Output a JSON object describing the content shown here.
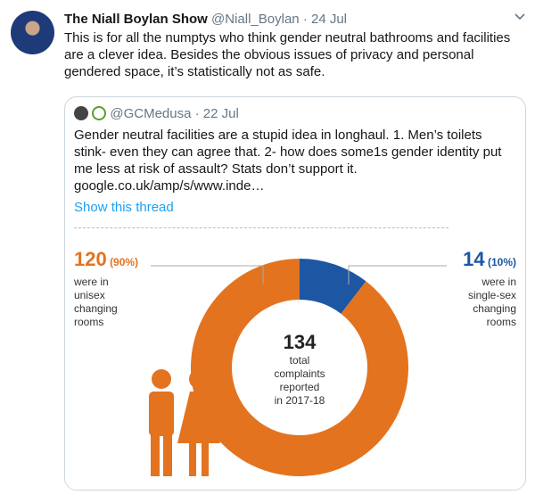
{
  "tweet": {
    "author": "The Niall Boylan Show",
    "handle": "@Niall_Boylan",
    "date": "24 Jul",
    "text": "This is for all the numptys who think gender neutral bathrooms and facilities are a clever idea. Besides the obvious issues of privacy and personal gendered space, it’s statistically not as safe."
  },
  "quote": {
    "handle": "@GCMedusa",
    "date": "22 Jul",
    "text": "Gender neutral facilities are a stupid idea in longhaul. 1. Men’s toilets stink- even they can agree that. 2- how does some1s gender identity put me less at risk of assault? Stats don’t support it.",
    "link": "google.co.uk/amp/s/www.inde…",
    "thread": "Show this thread"
  },
  "chart_data": {
    "type": "pie",
    "donut": true,
    "categories": [
      "were in unisex changing rooms",
      "were in single-sex changing rooms"
    ],
    "values": [
      120,
      14
    ],
    "percent_labels": [
      "(90%)",
      "(10%)"
    ],
    "colors": [
      "#e3731f",
      "#1d56a3"
    ],
    "total": 134,
    "center_label": [
      "total",
      "complaints",
      "reported",
      "in 2017-18"
    ]
  }
}
